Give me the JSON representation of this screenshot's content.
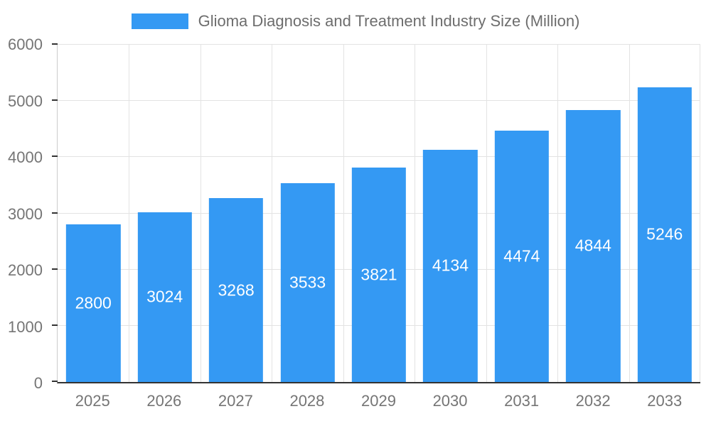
{
  "chart_data": {
    "type": "bar",
    "title": "Glioma Diagnosis and Treatment Industry Size (Million)",
    "categories": [
      "2025",
      "2026",
      "2027",
      "2028",
      "2029",
      "2030",
      "2031",
      "2032",
      "2033"
    ],
    "values": [
      2800,
      3024,
      3268,
      3533,
      3821,
      4134,
      4474,
      4844,
      5246
    ],
    "xlabel": "",
    "ylabel": "",
    "ylim": [
      0,
      6000
    ],
    "y_ticks": [
      0,
      1000,
      2000,
      3000,
      4000,
      5000,
      6000
    ],
    "bar_color": "#3499F3",
    "value_label_color": "#FFFFFF",
    "tick_label_color": "#757575",
    "title_color": "#6d6d6d",
    "grid": true,
    "legend_position": "top"
  }
}
